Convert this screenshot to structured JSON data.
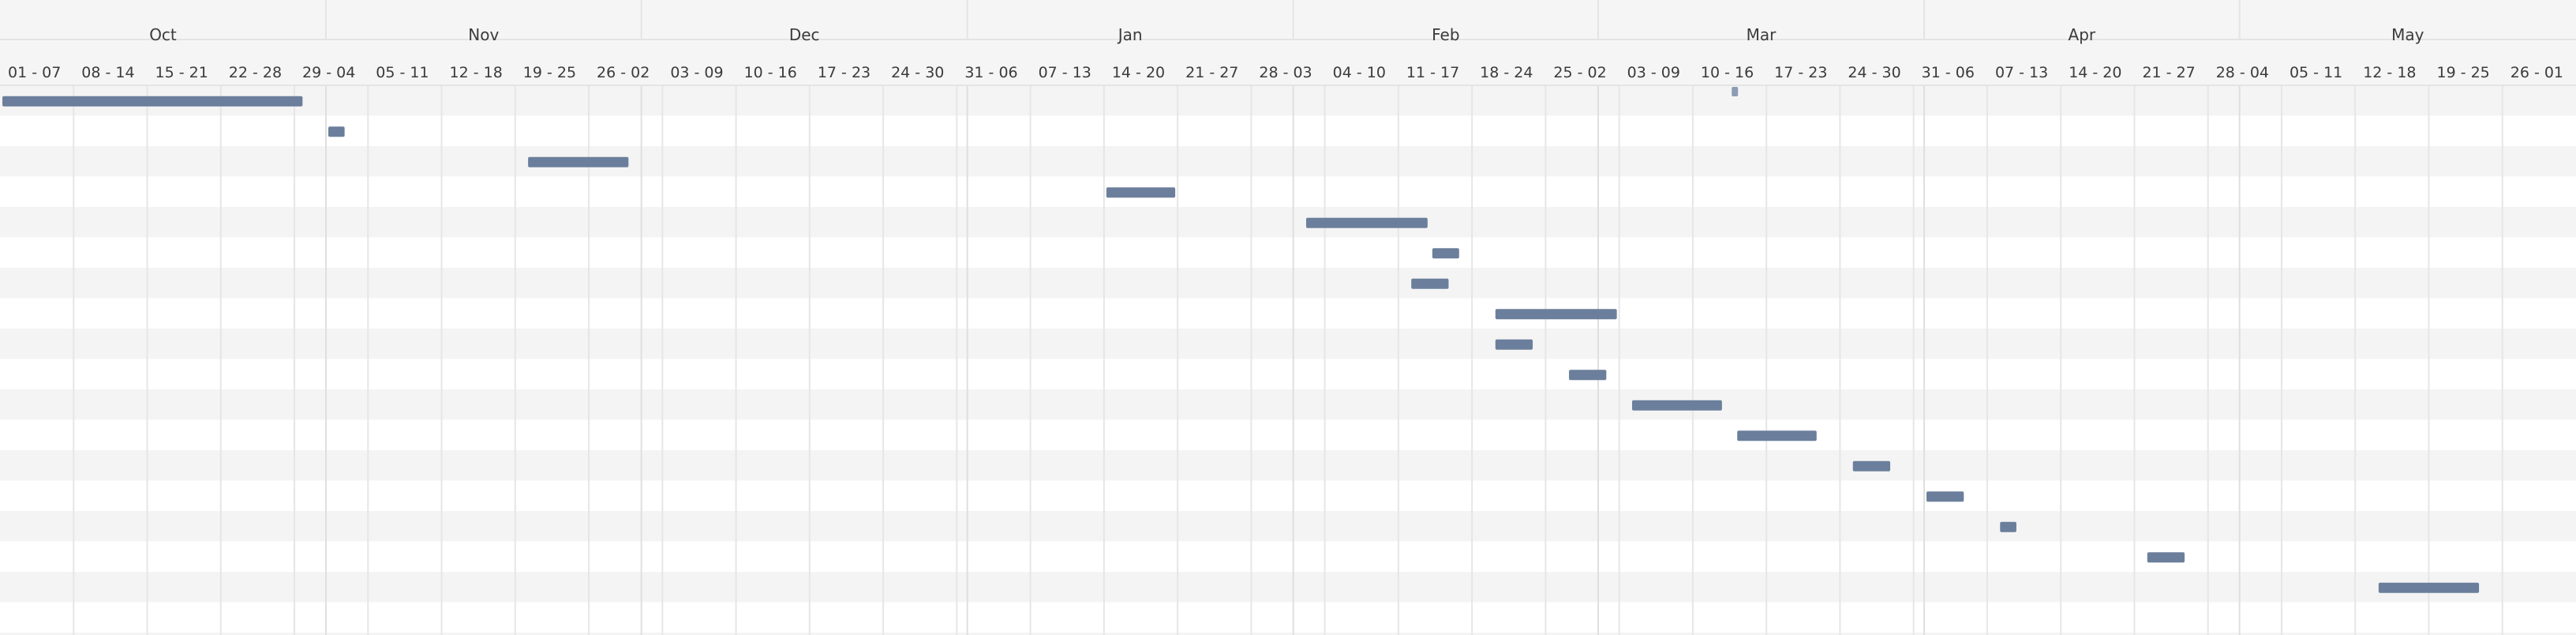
{
  "chart_data": {
    "type": "gantt",
    "months": [
      {
        "label": "Oct",
        "start": "2023-10-01"
      },
      {
        "label": "Nov",
        "start": "2023-11-01"
      },
      {
        "label": "Dec",
        "start": "2023-12-01"
      },
      {
        "label": "Jan",
        "start": "2024-01-01"
      },
      {
        "label": "Feb",
        "start": "2024-02-01"
      },
      {
        "label": "Mar",
        "start": "2024-03-01"
      },
      {
        "label": "Apr",
        "start": "2024-04-01"
      },
      {
        "label": "May",
        "start": "2024-05-01"
      }
    ],
    "weeks": [
      {
        "label": "01 - 07",
        "start": "2023-10-01"
      },
      {
        "label": "08 - 14",
        "start": "2023-10-08"
      },
      {
        "label": "15 - 21",
        "start": "2023-10-15"
      },
      {
        "label": "22 - 28",
        "start": "2023-10-22"
      },
      {
        "label": "29 - 04",
        "start": "2023-10-29"
      },
      {
        "label": "05 - 11",
        "start": "2023-11-05"
      },
      {
        "label": "12 - 18",
        "start": "2023-11-12"
      },
      {
        "label": "19 - 25",
        "start": "2023-11-19"
      },
      {
        "label": "26 - 02",
        "start": "2023-11-26"
      },
      {
        "label": "03 - 09",
        "start": "2023-12-03"
      },
      {
        "label": "10 - 16",
        "start": "2023-12-10"
      },
      {
        "label": "17 - 23",
        "start": "2023-12-17"
      },
      {
        "label": "24 - 30",
        "start": "2023-12-24"
      },
      {
        "label": "31 - 06",
        "start": "2023-12-31"
      },
      {
        "label": "07 - 13",
        "start": "2024-01-07"
      },
      {
        "label": "14 - 20",
        "start": "2024-01-14"
      },
      {
        "label": "21 - 27",
        "start": "2024-01-21"
      },
      {
        "label": "28 - 03",
        "start": "2024-01-28"
      },
      {
        "label": "04 - 10",
        "start": "2024-02-04"
      },
      {
        "label": "11 - 17",
        "start": "2024-02-11"
      },
      {
        "label": "18 - 24",
        "start": "2024-02-18"
      },
      {
        "label": "25 - 02",
        "start": "2024-02-25"
      },
      {
        "label": "03 - 09",
        "start": "2024-03-03"
      },
      {
        "label": "10 - 16",
        "start": "2024-03-10"
      },
      {
        "label": "17 - 23",
        "start": "2024-03-17"
      },
      {
        "label": "24 - 30",
        "start": "2024-03-24"
      },
      {
        "label": "31 - 06",
        "start": "2024-03-31"
      },
      {
        "label": "07 - 13",
        "start": "2024-04-07"
      },
      {
        "label": "14 - 20",
        "start": "2024-04-14"
      },
      {
        "label": "21 - 27",
        "start": "2024-04-21"
      },
      {
        "label": "28 - 04",
        "start": "2024-04-28"
      },
      {
        "label": "05 - 11",
        "start": "2024-05-05"
      },
      {
        "label": "12 - 18",
        "start": "2024-05-12"
      },
      {
        "label": "19 - 25",
        "start": "2024-05-19"
      },
      {
        "label": "26 - 01",
        "start": "2024-05-26"
      }
    ],
    "tasks": [
      {
        "start": "2023-10-01",
        "end": "2023-10-30"
      },
      {
        "start": "2023-11-01",
        "end": "2023-11-03"
      },
      {
        "start": "2023-11-20",
        "end": "2023-11-30"
      },
      {
        "start": "2024-01-14",
        "end": "2024-01-21"
      },
      {
        "start": "2024-02-02",
        "end": "2024-02-14"
      },
      {
        "start": "2024-02-14",
        "end": "2024-02-17"
      },
      {
        "start": "2024-02-12",
        "end": "2024-02-16"
      },
      {
        "start": "2024-02-20",
        "end": "2024-03-03"
      },
      {
        "start": "2024-02-20",
        "end": "2024-02-24"
      },
      {
        "start": "2024-02-27",
        "end": "2024-03-02"
      },
      {
        "start": "2024-03-04",
        "end": "2024-03-13"
      },
      {
        "start": "2024-03-14",
        "end": "2024-03-22"
      },
      {
        "start": "2024-03-25",
        "end": "2024-03-29"
      },
      {
        "start": "2024-04-01",
        "end": "2024-04-05"
      },
      {
        "start": "2024-04-08",
        "end": "2024-04-10"
      },
      {
        "start": "2024-04-22",
        "end": "2024-04-26"
      },
      {
        "start": "2024-05-14",
        "end": "2024-05-24"
      }
    ],
    "milestones": [
      {
        "date": "2024-03-14"
      }
    ],
    "range": {
      "start": "2023-10-01",
      "end": "2024-06-02"
    },
    "grid": true,
    "colors": {
      "bar": "#6b7f9c",
      "milestone": "#8c9cb4",
      "row_shade": "#f4f4f4",
      "row_plain": "#ffffff",
      "grid_line": "#e6e6e6",
      "month_line": "#e3dede"
    }
  }
}
